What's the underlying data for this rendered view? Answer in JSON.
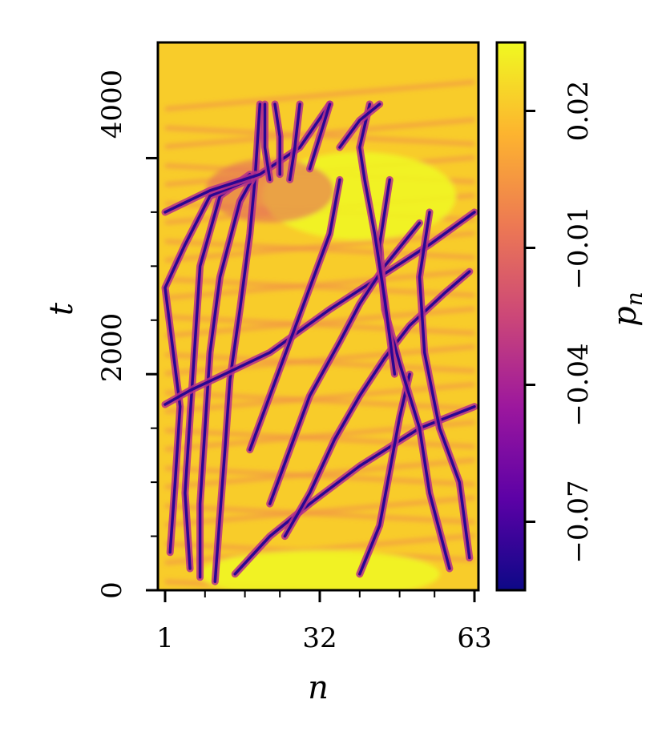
{
  "chart_data": {
    "type": "heatmap",
    "title": "",
    "xlabel": "n",
    "ylabel": "t",
    "colorbar_label": "p",
    "colorbar_label_subscript": "n",
    "x_ticks": [
      "1",
      "32",
      "63"
    ],
    "y_ticks": [
      "0",
      "2000",
      "4000"
    ],
    "colorbar_ticks": [
      "−0.07",
      "−0.04",
      "−0.01",
      "0.02"
    ],
    "x_range": [
      1,
      63
    ],
    "y_range": [
      0,
      4500
    ],
    "x_major_tick_values": [
      1,
      32,
      63
    ],
    "x_minor_tick_values": [
      9,
      17,
      24,
      40,
      48,
      55
    ],
    "y_major_tick_values": [
      0,
      2000,
      4000
    ],
    "y_minor_tick_values": [
      500,
      1000,
      1500,
      2500,
      3000,
      3500
    ],
    "color_range": [
      -0.085,
      0.035
    ],
    "colorbar_tick_values": [
      -0.07,
      -0.04,
      -0.01,
      0.02
    ],
    "colormap": "plasma",
    "colormap_stops": [
      "#0d0887",
      "#5c01a6",
      "#9c179e",
      "#cc4778",
      "#ed7953",
      "#fdb42f",
      "#f0f921"
    ],
    "background_value": 0.022,
    "trajectories": [
      {
        "points": [
          [
            11,
            80
          ],
          [
            12,
            700
          ],
          [
            13,
            1300
          ],
          [
            14,
            1950
          ],
          [
            16,
            2600
          ],
          [
            18,
            3300
          ],
          [
            19,
            3800
          ],
          [
            20,
            4500
          ]
        ]
      },
      {
        "points": [
          [
            8,
            120
          ],
          [
            8,
            800
          ],
          [
            9,
            1500
          ],
          [
            10,
            2200
          ],
          [
            12,
            2900
          ],
          [
            16,
            3600
          ],
          [
            19,
            3850
          ]
        ]
      },
      {
        "points": [
          [
            6,
            200
          ],
          [
            5,
            900
          ],
          [
            6,
            1600
          ],
          [
            7,
            2300
          ],
          [
            8,
            3000
          ],
          [
            12,
            3650
          ],
          [
            18,
            3850
          ]
        ]
      },
      {
        "points": [
          [
            2,
            350
          ],
          [
            3,
            1000
          ],
          [
            4,
            1700
          ],
          [
            1,
            2800
          ],
          [
            5,
            3200
          ],
          [
            10,
            3650
          ],
          [
            18,
            3800
          ]
        ]
      },
      {
        "points": [
          [
            15,
            150
          ],
          [
            22,
            500
          ],
          [
            30,
            800
          ],
          [
            40,
            1150
          ],
          [
            52,
            1500
          ],
          [
            63,
            1700
          ]
        ]
      },
      {
        "points": [
          [
            1,
            1720
          ],
          [
            6,
            1850
          ],
          [
            12,
            1980
          ],
          [
            22,
            2200
          ],
          [
            34,
            2600
          ],
          [
            44,
            2900
          ],
          [
            54,
            3200
          ],
          [
            63,
            3500
          ]
        ]
      },
      {
        "points": [
          [
            1,
            3500
          ],
          [
            10,
            3700
          ],
          [
            20,
            3850
          ],
          [
            28,
            4100
          ],
          [
            34,
            4500
          ]
        ]
      },
      {
        "points": [
          [
            25,
            500
          ],
          [
            30,
            900
          ],
          [
            35,
            1400
          ],
          [
            40,
            1800
          ],
          [
            45,
            2150
          ],
          [
            50,
            2450
          ],
          [
            57,
            2750
          ],
          [
            62,
            2950
          ]
        ]
      },
      {
        "points": [
          [
            22,
            800
          ],
          [
            26,
            1300
          ],
          [
            30,
            1800
          ],
          [
            36,
            2300
          ],
          [
            40,
            2650
          ],
          [
            45,
            3000
          ],
          [
            52,
            3400
          ]
        ]
      },
      {
        "points": [
          [
            18,
            1300
          ],
          [
            22,
            1800
          ],
          [
            26,
            2300
          ],
          [
            30,
            2800
          ],
          [
            34,
            3300
          ],
          [
            36,
            3800
          ]
        ]
      },
      {
        "points": [
          [
            40,
            150
          ],
          [
            44,
            600
          ],
          [
            46,
            1100
          ],
          [
            48,
            1600
          ],
          [
            50,
            2000
          ]
        ]
      },
      {
        "points": [
          [
            58,
            200
          ],
          [
            54,
            900
          ],
          [
            52,
            1500
          ],
          [
            48,
            2100
          ],
          [
            45,
            2600
          ],
          [
            44,
            3200
          ],
          [
            46,
            3800
          ]
        ]
      },
      {
        "points": [
          [
            62,
            300
          ],
          [
            60,
            1000
          ],
          [
            56,
            1500
          ],
          [
            53,
            2200
          ],
          [
            52,
            2900
          ],
          [
            54,
            3500
          ]
        ]
      },
      {
        "points": [
          [
            47,
            2000
          ],
          [
            45,
            2700
          ],
          [
            43,
            3300
          ],
          [
            41,
            3800
          ],
          [
            40,
            4100
          ],
          [
            42,
            4500
          ]
        ]
      },
      {
        "points": [
          [
            26,
            3800
          ],
          [
            27,
            4100
          ],
          [
            28,
            4500
          ]
        ]
      },
      {
        "points": [
          [
            24,
            3850
          ],
          [
            24,
            4200
          ],
          [
            23,
            4500
          ]
        ]
      },
      {
        "points": [
          [
            22,
            3800
          ],
          [
            21,
            4100
          ],
          [
            21,
            4500
          ]
        ]
      },
      {
        "points": [
          [
            30,
            3900
          ],
          [
            32,
            4200
          ],
          [
            34,
            4500
          ]
        ]
      },
      {
        "points": [
          [
            36,
            4100
          ],
          [
            40,
            4350
          ],
          [
            44,
            4500
          ]
        ]
      }
    ]
  }
}
